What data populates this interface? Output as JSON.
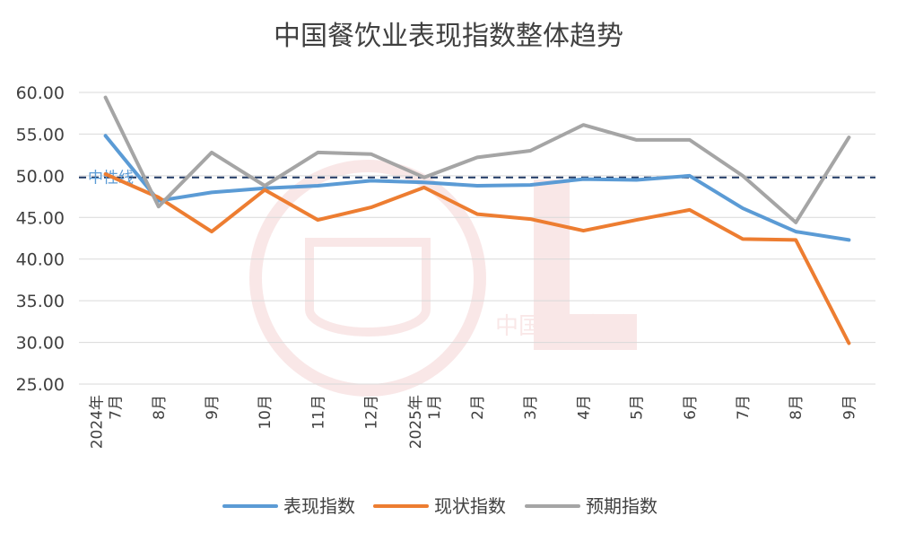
{
  "chart_data": {
    "type": "line",
    "title": "中国餐饮业表现指数整体趋势",
    "categories": [
      "2024年 7月",
      "8月",
      "9月",
      "10月",
      "11月",
      "12月",
      "2025年 1月",
      "2月",
      "3月",
      "4月",
      "5月",
      "6月",
      "7月",
      "8月",
      "9月"
    ],
    "category_lines": [
      [
        "2024年",
        "7月"
      ],
      [
        "8月"
      ],
      [
        "9月"
      ],
      [
        "10月"
      ],
      [
        "11月"
      ],
      [
        "12月"
      ],
      [
        "2025年",
        "1月"
      ],
      [
        "2月"
      ],
      [
        "3月"
      ],
      [
        "4月"
      ],
      [
        "5月"
      ],
      [
        "6月"
      ],
      [
        "7月"
      ],
      [
        "8月"
      ],
      [
        "9月"
      ]
    ],
    "ylim": [
      25,
      60
    ],
    "yticks": [
      "60.00",
      "55.00",
      "50.00",
      "45.00",
      "40.00",
      "35.00",
      "30.00",
      "25.00"
    ],
    "ytick_values": [
      60,
      55,
      50,
      45,
      40,
      35,
      30,
      25
    ],
    "reference_line": {
      "label": "中性线",
      "value": 49.8
    },
    "series": [
      {
        "name": "表现指数",
        "color": "#5b9bd5",
        "values": [
          54.8,
          47.0,
          48.0,
          48.5,
          48.8,
          49.4,
          49.2,
          48.8,
          48.9,
          49.6,
          49.5,
          50.0,
          46.1,
          43.3,
          42.3
        ]
      },
      {
        "name": "现状指数",
        "color": "#ed7d31",
        "values": [
          50.2,
          47.4,
          43.3,
          48.3,
          44.7,
          46.2,
          48.6,
          45.4,
          44.8,
          43.4,
          44.7,
          45.9,
          42.4,
          42.3,
          29.9
        ]
      },
      {
        "name": "预期指数",
        "color": "#a5a5a5",
        "values": [
          59.4,
          46.3,
          52.8,
          48.8,
          52.8,
          52.6,
          49.8,
          52.2,
          53.0,
          56.1,
          54.3,
          54.3,
          50.0,
          44.4,
          54.6
        ]
      }
    ],
    "xlabel": "",
    "ylabel": "",
    "legend": "bottom",
    "grid": true
  },
  "watermark": {
    "org": "中国烹饪协会"
  }
}
